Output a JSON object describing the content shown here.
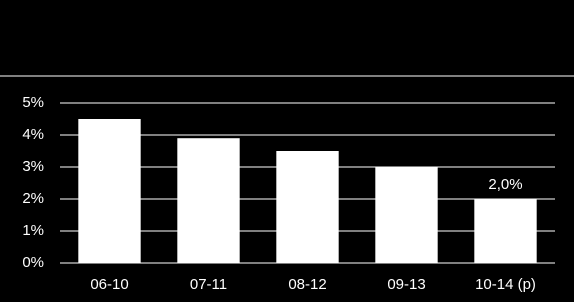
{
  "chart_data": {
    "type": "bar",
    "categories": [
      "06-10",
      "07-11",
      "08-12",
      "09-13",
      "10-14 (p)"
    ],
    "values": [
      4.5,
      3.9,
      3.5,
      3.0,
      2.0
    ],
    "value_labels": [
      null,
      null,
      null,
      null,
      "2,0%"
    ],
    "color": "#ffffff",
    "ylim": [
      0,
      5
    ],
    "yticks": [
      {
        "value": 0,
        "label": "0%"
      },
      {
        "value": 1,
        "label": "1%"
      },
      {
        "value": 2,
        "label": "2%"
      },
      {
        "value": 3,
        "label": "3%"
      },
      {
        "value": 4,
        "label": "4%"
      },
      {
        "value": 5,
        "label": "5%"
      }
    ],
    "grid": true
  }
}
